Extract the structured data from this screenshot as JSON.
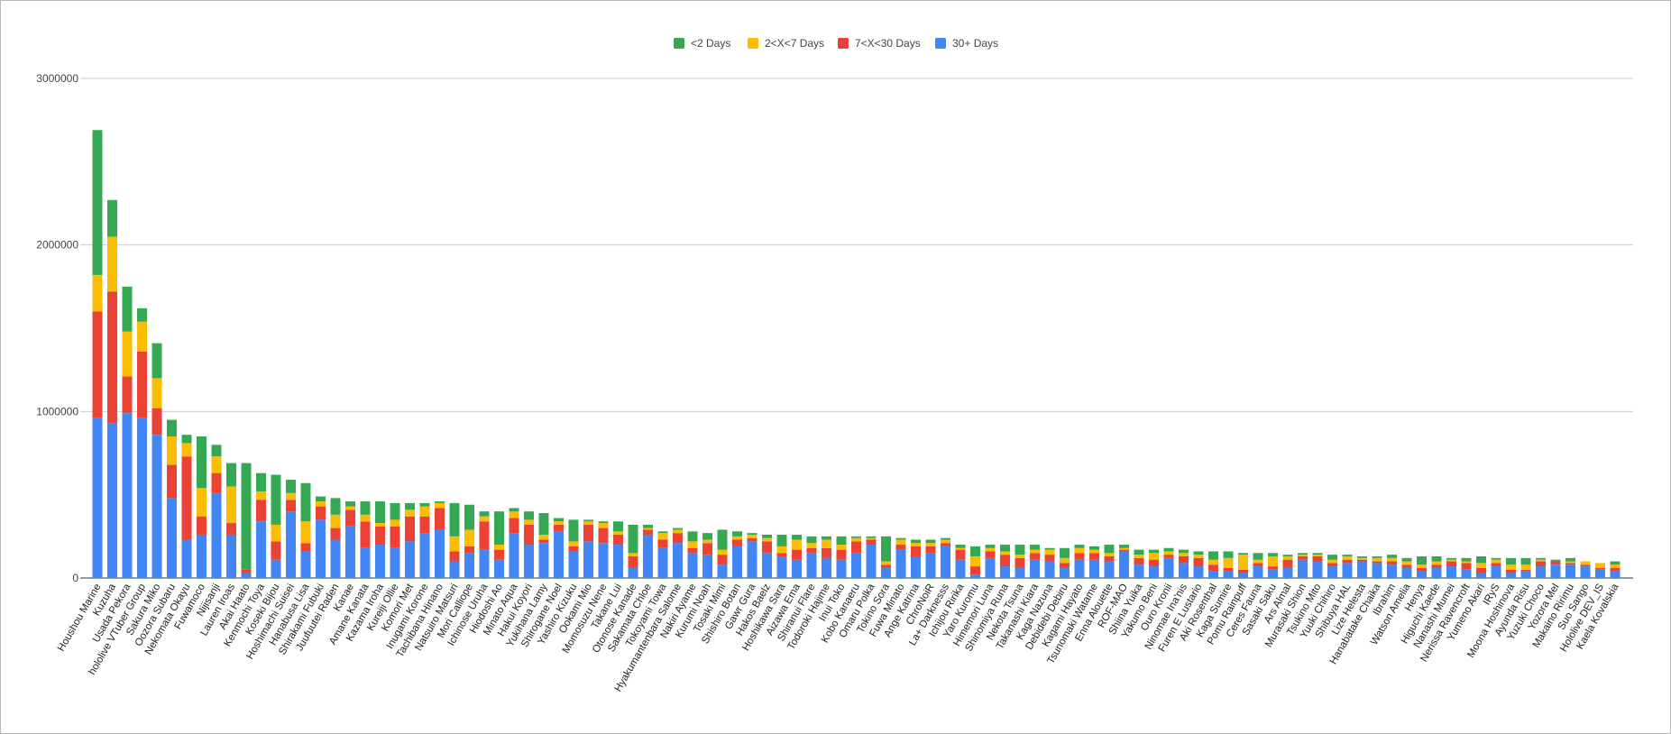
{
  "chart_data": {
    "type": "bar",
    "stacked": true,
    "title": "",
    "xlabel": "",
    "ylabel": "",
    "ylim": [
      0,
      3000000
    ],
    "yticks": [
      "0",
      "1000000",
      "2000000",
      "3000000"
    ],
    "ytick_values": [
      0,
      1000000,
      2000000,
      3000000
    ],
    "grid": true,
    "legend_position": "top-center",
    "categories": [
      "Houshou Marine",
      "Kuzuha",
      "Usada Pekora",
      "hololive VTuber Group",
      "Sakura Miko",
      "Oozora Subaru",
      "Nekomata Okayu",
      "Fuwamoco",
      "Nijisanji",
      "Lauren Iroas",
      "Akai Haato",
      "Kenmochi Toya",
      "Koseki Bijou",
      "Hoshimachi Suisei",
      "Hanabusa Lisa",
      "Shirakami Fubuki",
      "Juufuutei Raden",
      "Kanae",
      "Amane Kanata",
      "Kazama Iroha",
      "Kureiji Ollie",
      "Komori Met",
      "Inugami Korone",
      "Tachibana Hinano",
      "Natsuiro Matsuri",
      "Mori Calliope",
      "Ichinose Uruha",
      "Hiodoshi Ao",
      "Minato Aqua",
      "Hakui Koyori",
      "Yukihana Lamy",
      "Shirogane Noel",
      "Yashiro Kizuku",
      "Ookami Mio",
      "Momosuzu Nene",
      "Takane Lui",
      "Otonose Kanade",
      "Sakamata Chloe",
      "Tokoyami Towa",
      "Hyakumantenbara Salome",
      "Nakiri Ayame",
      "Kurumi Noah",
      "Tosaki Mimi",
      "Shishiro Botan",
      "Gawr Gura",
      "Hakos Baelz",
      "Hoshikawa Sara",
      "Aizawa Ema",
      "Shiranui Flare",
      "Todoroki Hajime",
      "Inui Toko",
      "Kobo Kanaeru",
      "Omaru Polka",
      "Tokino Sora",
      "Fuwa Minato",
      "Ange Katrina",
      "ChroNoiR",
      "La+ Darknesss",
      "Ichijou Ririka",
      "Yaro Kuromu",
      "Himemori Luna",
      "Shinomiya Runa",
      "Nekota Tsuna",
      "Takanashi Kiara",
      "Kaga Nazuna",
      "Debidebi Debiru",
      "Kagami Hayato",
      "Tsunomaki Watame",
      "Enna Alouette",
      "ROF-MAO",
      "Shiina Yuika",
      "Yakumo Beni",
      "Ouro Kronii",
      "Ninomae Ina'nis",
      "Furen E Lustario",
      "Aki Rosenthal",
      "Kaga Sumire",
      "Pomu Rainpuff",
      "Ceres Fauna",
      "Sasaki Saku",
      "Ars Almal",
      "Murasaki Shion",
      "Tsukino Mito",
      "Yuuki Chihiro",
      "Shibuya HAL",
      "Lize Helesta",
      "Hanabatake Chaika",
      "Ibrahim",
      "Watson Amelia",
      "Henya",
      "Higuchi Kaede",
      "Nanashi Mumei",
      "Nerissa Ravencroft",
      "Yumeno Akari",
      "IRyS",
      "Moona Hoshinova",
      "Ayunda Risu",
      "Yuzuki Choco",
      "Yozora Mel",
      "Makaino Ririmu",
      "Suo Sango",
      "Hololive DEV_IS",
      "Kaela Kovalskia"
    ],
    "series": [
      {
        "name": "30+ Days",
        "color": "#4285f4",
        "values": [
          960000,
          930000,
          990000,
          960000,
          860000,
          480000,
          230000,
          260000,
          510000,
          260000,
          30000,
          340000,
          110000,
          400000,
          160000,
          350000,
          230000,
          310000,
          180000,
          200000,
          180000,
          220000,
          270000,
          290000,
          100000,
          150000,
          170000,
          110000,
          270000,
          200000,
          210000,
          280000,
          160000,
          220000,
          210000,
          200000,
          60000,
          260000,
          180000,
          210000,
          150000,
          140000,
          80000,
          190000,
          220000,
          150000,
          130000,
          110000,
          150000,
          120000,
          110000,
          150000,
          200000,
          60000,
          170000,
          130000,
          150000,
          190000,
          110000,
          20000,
          120000,
          70000,
          60000,
          110000,
          100000,
          60000,
          110000,
          110000,
          100000,
          160000,
          80000,
          70000,
          120000,
          90000,
          70000,
          40000,
          40000,
          30000,
          70000,
          50000,
          60000,
          110000,
          100000,
          70000,
          90000,
          100000,
          90000,
          80000,
          60000,
          40000,
          60000,
          70000,
          50000,
          30000,
          70000,
          30000,
          40000,
          70000,
          80000,
          80000,
          70000,
          50000,
          40000
        ]
      },
      {
        "name": "7<X<30 Days",
        "color": "#ea4335",
        "values": [
          640000,
          790000,
          220000,
          400000,
          160000,
          200000,
          500000,
          110000,
          120000,
          70000,
          20000,
          130000,
          110000,
          70000,
          50000,
          80000,
          70000,
          100000,
          160000,
          110000,
          130000,
          150000,
          100000,
          130000,
          60000,
          40000,
          170000,
          60000,
          90000,
          120000,
          20000,
          40000,
          30000,
          100000,
          90000,
          60000,
          70000,
          30000,
          50000,
          60000,
          30000,
          70000,
          60000,
          40000,
          20000,
          70000,
          20000,
          60000,
          30000,
          60000,
          60000,
          70000,
          30000,
          20000,
          30000,
          60000,
          40000,
          20000,
          60000,
          50000,
          40000,
          70000,
          60000,
          40000,
          40000,
          30000,
          40000,
          40000,
          30000,
          10000,
          40000,
          40000,
          20000,
          40000,
          50000,
          40000,
          20000,
          20000,
          20000,
          20000,
          50000,
          20000,
          30000,
          20000,
          20000,
          10000,
          10000,
          20000,
          20000,
          20000,
          20000,
          30000,
          40000,
          30000,
          20000,
          20000,
          10000,
          30000,
          20000,
          10000,
          10000,
          10000,
          20000
        ]
      },
      {
        "name": "2<X<7 Days",
        "color": "#fbbc04",
        "values": [
          220000,
          330000,
          270000,
          180000,
          180000,
          170000,
          80000,
          170000,
          100000,
          220000,
          0,
          50000,
          100000,
          40000,
          130000,
          30000,
          80000,
          20000,
          40000,
          20000,
          40000,
          40000,
          60000,
          30000,
          90000,
          100000,
          30000,
          30000,
          40000,
          30000,
          30000,
          20000,
          30000,
          20000,
          30000,
          20000,
          20000,
          10000,
          40000,
          20000,
          40000,
          20000,
          30000,
          20000,
          20000,
          20000,
          40000,
          60000,
          30000,
          50000,
          30000,
          20000,
          10000,
          20000,
          30000,
          20000,
          20000,
          20000,
          10000,
          60000,
          20000,
          20000,
          20000,
          20000,
          30000,
          30000,
          30000,
          20000,
          20000,
          10000,
          20000,
          40000,
          20000,
          20000,
          20000,
          30000,
          60000,
          90000,
          20000,
          60000,
          20000,
          10000,
          10000,
          20000,
          20000,
          10000,
          20000,
          20000,
          20000,
          20000,
          20000,
          10000,
          10000,
          30000,
          20000,
          30000,
          30000,
          10000,
          0,
          10000,
          20000,
          30000,
          20000
        ]
      },
      {
        "name": "<2 Days",
        "color": "#34a853",
        "values": [
          870000,
          220000,
          270000,
          80000,
          210000,
          100000,
          50000,
          310000,
          70000,
          140000,
          640000,
          110000,
          300000,
          80000,
          230000,
          30000,
          100000,
          30000,
          80000,
          130000,
          100000,
          40000,
          20000,
          10000,
          200000,
          150000,
          30000,
          200000,
          20000,
          50000,
          130000,
          20000,
          130000,
          10000,
          10000,
          60000,
          170000,
          20000,
          10000,
          10000,
          60000,
          40000,
          120000,
          30000,
          10000,
          20000,
          70000,
          30000,
          40000,
          20000,
          50000,
          10000,
          10000,
          150000,
          10000,
          20000,
          20000,
          10000,
          20000,
          60000,
          20000,
          40000,
          60000,
          30000,
          10000,
          60000,
          20000,
          20000,
          50000,
          20000,
          30000,
          20000,
          20000,
          20000,
          20000,
          50000,
          40000,
          10000,
          40000,
          20000,
          10000,
          10000,
          10000,
          30000,
          10000,
          10000,
          10000,
          20000,
          20000,
          50000,
          30000,
          10000,
          20000,
          40000,
          10000,
          40000,
          40000,
          10000,
          10000,
          20000,
          0,
          0,
          20000
        ]
      }
    ],
    "legend": [
      "<2 Days",
      "2<X<7 Days",
      "7<X<30 Days",
      "30+ Days"
    ]
  }
}
